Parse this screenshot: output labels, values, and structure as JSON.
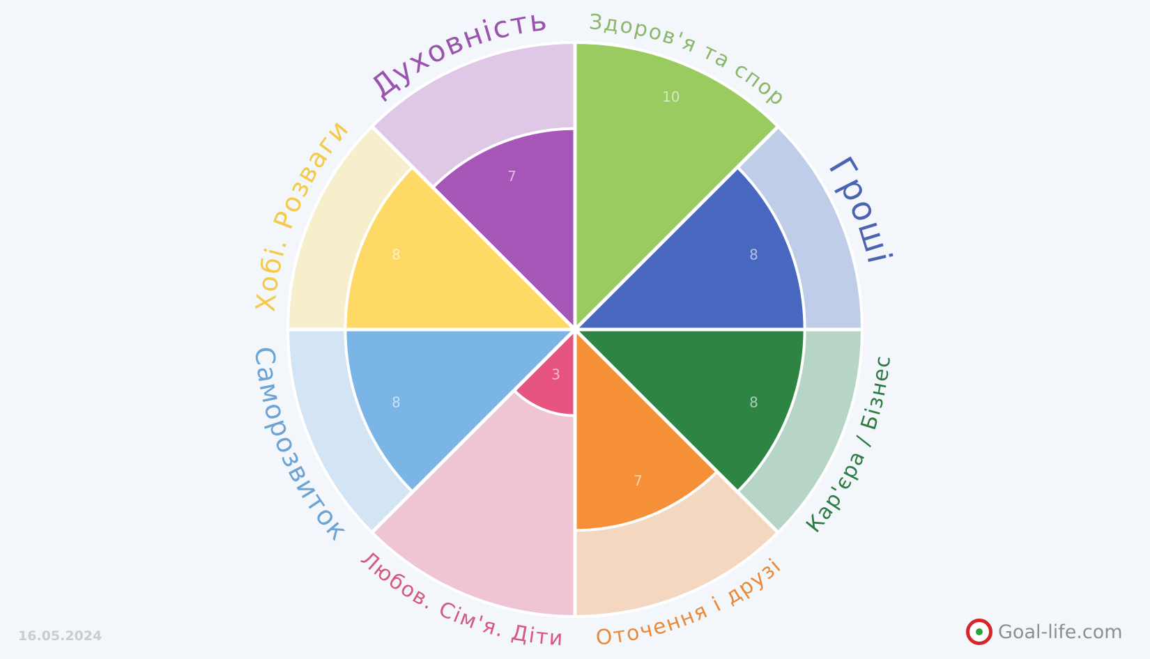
{
  "chart_data": {
    "type": "radial-bar",
    "max": 10,
    "segments": [
      {
        "label": "Здоров'я та спор",
        "value": 10,
        "color": "#99cb61",
        "light": "#c4dea6",
        "labelColor": "#8ab76a",
        "labelSize": 30
      },
      {
        "label": "Гроші",
        "value": 8,
        "color": "#4768be",
        "light": "#c0cde9",
        "labelColor": "#4b64b0",
        "labelSize": 48
      },
      {
        "label": "Кар'єра / Бізнес",
        "value": 8,
        "color": "#2e8443",
        "light": "#b6d5c6",
        "labelColor": "#2e7a44",
        "labelSize": 30
      },
      {
        "label": "Оточення і друзі",
        "value": 7,
        "color": "#f58f38",
        "light": "#f4d7c1",
        "labelColor": "#e9893a",
        "labelSize": 30
      },
      {
        "label": "Любов. Сім'я. Діти",
        "value": 3,
        "color": "#e85480",
        "light": "#efc5d6",
        "labelColor": "#d55a7f",
        "labelSize": 30
      },
      {
        "label": "Саморозвиток",
        "value": 8,
        "color": "#7ab5e6",
        "light": "#d3e5f4",
        "labelColor": "#6ea4d4",
        "labelSize": 38
      },
      {
        "label": "Хобі. Розваги",
        "value": 8,
        "color": "#ffd966",
        "light": "#f7eecc",
        "labelColor": "#f3ca4a",
        "labelSize": 38
      },
      {
        "label": "Духовність",
        "value": 7,
        "color": "#a556b6",
        "light": "#dfc8e6",
        "labelColor": "#9a54ae",
        "labelSize": 42
      }
    ]
  },
  "footer": {
    "date": "16.05.2024",
    "brand": "Goal-life.com"
  }
}
